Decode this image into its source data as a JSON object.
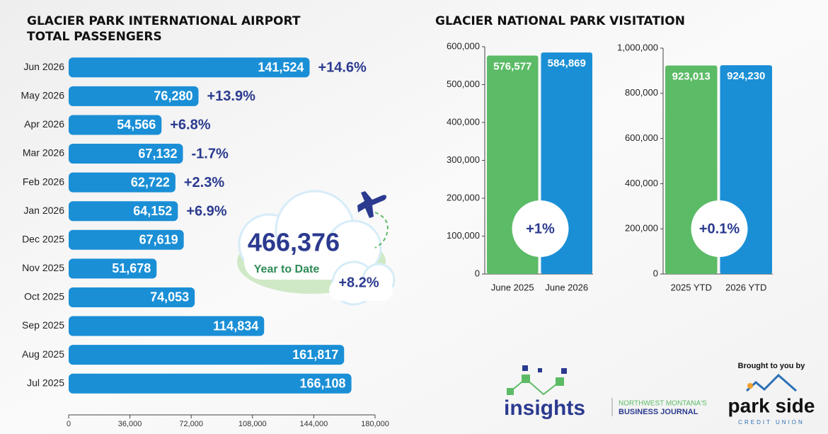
{
  "chart_data": [
    {
      "type": "bar",
      "orientation": "horizontal",
      "title": [
        "GLACIER PARK INTERNATIONAL AIRPORT",
        "TOTAL PASSENGERS"
      ],
      "categories": [
        "Jun 2026",
        "May 2026",
        "Apr 2026",
        "Mar 2026",
        "Feb 2026",
        "Jan 2026",
        "Dec 2025",
        "Nov 2025",
        "Oct 2025",
        "Sep 2025",
        "Aug 2025",
        "Jul 2025"
      ],
      "values": [
        141524,
        76280,
        54566,
        67132,
        62722,
        64152,
        67619,
        51678,
        74053,
        114834,
        161817,
        166108
      ],
      "value_labels": [
        "141,524",
        "76,280",
        "54,566",
        "67,132",
        "62,722",
        "64,152",
        "67,619",
        "51,678",
        "74,053",
        "114,834",
        "161,817",
        "166,108"
      ],
      "changes": [
        "+14.6%",
        "+13.9%",
        "+6.8%",
        "-1.7%",
        "+2.3%",
        "+6.9%",
        null,
        null,
        null,
        null,
        null,
        null
      ],
      "color": "#1a8fd6",
      "xlim": [
        0,
        180000
      ],
      "xticks": [
        0,
        {
          "value": 36000,
          "label": "36,000"
        },
        {
          "value": 72000,
          "label": "72,000"
        },
        {
          "value": 108000,
          "label": "108,000"
        },
        {
          "value": 144000,
          "label": "144,000"
        },
        {
          "value": 180000,
          "label": "180,000"
        }
      ],
      "ytd": {
        "value": 466376,
        "label": "466,376",
        "caption": "Year to Date",
        "change": "+8.2%"
      }
    },
    {
      "type": "bar",
      "orientation": "vertical",
      "title": [
        "GLACIER NATIONAL PARK VISITATION"
      ],
      "categories": [
        "June 2025",
        "June 2026"
      ],
      "values": [
        576577,
        584869
      ],
      "value_labels": [
        "576,577",
        "584,869"
      ],
      "colors": [
        "#5cbb66",
        "#1a8fd6"
      ],
      "ylim": [
        0,
        600000
      ],
      "yticks": [
        0,
        {
          "value": 100000,
          "label": "100,000"
        },
        {
          "value": 200000,
          "label": "200,000"
        },
        {
          "value": 300000,
          "label": "300,000"
        },
        {
          "value": 400000,
          "label": "400,000"
        },
        {
          "value": 500000,
          "label": "500,000"
        },
        {
          "value": 600000,
          "label": "600,000"
        }
      ],
      "annotation": "+1%"
    },
    {
      "type": "bar",
      "orientation": "vertical",
      "categories": [
        "2025 YTD",
        "2026 YTD"
      ],
      "values": [
        923013,
        924230
      ],
      "value_labels": [
        "923,013",
        "924,230"
      ],
      "colors": [
        "#5cbb66",
        "#1a8fd6"
      ],
      "ylim": [
        0,
        1000000
      ],
      "yticks": [
        0,
        {
          "value": 200000,
          "label": "200,000"
        },
        {
          "value": 400000,
          "label": "400,000"
        },
        {
          "value": 600000,
          "label": "600,000"
        },
        {
          "value": 800000,
          "label": "800,000"
        },
        {
          "value": 1000000,
          "label": "1,000,000"
        }
      ],
      "annotation": "+0.1%"
    }
  ],
  "branding": {
    "insights": "insights",
    "tagline_1": "NORTHWEST MONTANA'S",
    "tagline_2": "BUSINESS JOURNAL",
    "sponsor_intro": "Brought to you by",
    "sponsor": "park side",
    "sponsor_sub": "CREDIT UNION"
  }
}
